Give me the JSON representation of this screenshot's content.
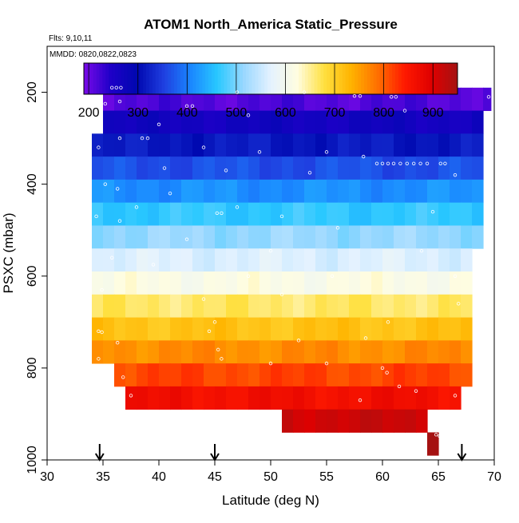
{
  "chart_data": {
    "type": "heatmap",
    "title": "ATOM1 North_America Static_Pressure",
    "flights_label": "Flts: 9,10,11",
    "dates_label": "MMDD: 0820,0822,0823",
    "xlabel": "Latitude (deg N)",
    "ylabel": "PSXC (mbar)",
    "xlim": [
      30,
      70
    ],
    "ylim": [
      1000,
      100
    ],
    "xticks": [
      "30",
      "35",
      "40",
      "45",
      "50",
      "55",
      "60",
      "65",
      "70"
    ],
    "yticks": [
      "200",
      "400",
      "600",
      "800",
      "1000"
    ],
    "colorbar": {
      "min": 190,
      "max": 950,
      "ticks": [
        "200",
        "300",
        "400",
        "500",
        "600",
        "700",
        "800",
        "900"
      ],
      "stops": [
        "#7a0ae8",
        "#1e00c8",
        "#0008b0",
        "#1f3fe0",
        "#1a86ff",
        "#28c8ff",
        "#9ad8ff",
        "#e4f2ff",
        "#fffde0",
        "#ffe040",
        "#ffb400",
        "#ff7000",
        "#ff1a00",
        "#e00000",
        "#a51212"
      ]
    },
    "flight_arrows_lat": [
      34.7,
      45,
      67.1
    ],
    "bands": [
      {
        "p": 190,
        "lat": [
          35,
          53
        ]
      },
      {
        "p": 215,
        "lat": [
          35,
          69.7
        ]
      },
      {
        "p": 265,
        "lat": [
          35,
          69
        ]
      },
      {
        "p": 315,
        "lat": [
          34,
          69
        ]
      },
      {
        "p": 365,
        "lat": [
          34,
          69
        ]
      },
      {
        "p": 415,
        "lat": [
          34,
          69
        ]
      },
      {
        "p": 465,
        "lat": [
          34,
          69
        ]
      },
      {
        "p": 515,
        "lat": [
          34,
          69
        ]
      },
      {
        "p": 565,
        "lat": [
          34,
          68
        ]
      },
      {
        "p": 615,
        "lat": [
          34,
          68
        ]
      },
      {
        "p": 665,
        "lat": [
          34,
          68
        ]
      },
      {
        "p": 715,
        "lat": [
          34,
          68
        ]
      },
      {
        "p": 765,
        "lat": [
          34,
          68
        ]
      },
      {
        "p": 815,
        "lat": [
          36,
          68
        ]
      },
      {
        "p": 865,
        "lat": [
          37,
          67
        ]
      },
      {
        "p": 915,
        "lat": [
          51,
          64
        ]
      },
      {
        "p": 965,
        "lat": [
          64,
          65
        ]
      }
    ],
    "points": [
      [
        35.8,
        190
      ],
      [
        36.2,
        190
      ],
      [
        36.6,
        190
      ],
      [
        53.0,
        200
      ],
      [
        47.0,
        200
      ],
      [
        57.5,
        208
      ],
      [
        58.0,
        208
      ],
      [
        60.8,
        210
      ],
      [
        61.2,
        210
      ],
      [
        69.5,
        210
      ],
      [
        35.2,
        225
      ],
      [
        36.5,
        220
      ],
      [
        42.5,
        230
      ],
      [
        43.0,
        230
      ],
      [
        62.0,
        240
      ],
      [
        48.0,
        250
      ],
      [
        40.0,
        270
      ],
      [
        36.5,
        300
      ],
      [
        38.5,
        300
      ],
      [
        39.0,
        300
      ],
      [
        34.6,
        320
      ],
      [
        44.0,
        320
      ],
      [
        49.0,
        330
      ],
      [
        55.0,
        330
      ],
      [
        58.3,
        340
      ],
      [
        59.5,
        355
      ],
      [
        60.0,
        355
      ],
      [
        60.5,
        355
      ],
      [
        61.0,
        355
      ],
      [
        61.6,
        355
      ],
      [
        62.2,
        355
      ],
      [
        62.8,
        355
      ],
      [
        63.4,
        355
      ],
      [
        64.0,
        355
      ],
      [
        65.2,
        355
      ],
      [
        65.6,
        355
      ],
      [
        40.5,
        365
      ],
      [
        46.0,
        370
      ],
      [
        53.5,
        375
      ],
      [
        66.5,
        380
      ],
      [
        35.2,
        400
      ],
      [
        36.3,
        410
      ],
      [
        41.0,
        420
      ],
      [
        38.0,
        450
      ],
      [
        47.0,
        450
      ],
      [
        45.2,
        463
      ],
      [
        45.6,
        463
      ],
      [
        51.0,
        470
      ],
      [
        64.5,
        460
      ],
      [
        34.4,
        470
      ],
      [
        36.5,
        480
      ],
      [
        56.0,
        495
      ],
      [
        42.5,
        520
      ],
      [
        50.0,
        545
      ],
      [
        63.5,
        545
      ],
      [
        35.8,
        560
      ],
      [
        39.5,
        575
      ],
      [
        48.0,
        600
      ],
      [
        55.5,
        600
      ],
      [
        66.5,
        600
      ],
      [
        34.9,
        630
      ],
      [
        44.0,
        650
      ],
      [
        51.0,
        640
      ],
      [
        66.8,
        660
      ],
      [
        45.0,
        700
      ],
      [
        60.5,
        700
      ],
      [
        34.6,
        720
      ],
      [
        34.9,
        722
      ],
      [
        44.5,
        720
      ],
      [
        36.3,
        745
      ],
      [
        52.5,
        740
      ],
      [
        58.5,
        735
      ],
      [
        45.3,
        760
      ],
      [
        45.6,
        780
      ],
      [
        34.6,
        780
      ],
      [
        55.0,
        790
      ],
      [
        50.0,
        790
      ],
      [
        60.0,
        800
      ],
      [
        60.4,
        810
      ],
      [
        36.8,
        820
      ],
      [
        61.5,
        840
      ],
      [
        63.0,
        850
      ],
      [
        37.5,
        860
      ],
      [
        66.5,
        860
      ],
      [
        58.0,
        870
      ],
      [
        65.0,
        900
      ],
      [
        65.2,
        920
      ],
      [
        64.8,
        945
      ],
      [
        65.1,
        948
      ]
    ]
  }
}
